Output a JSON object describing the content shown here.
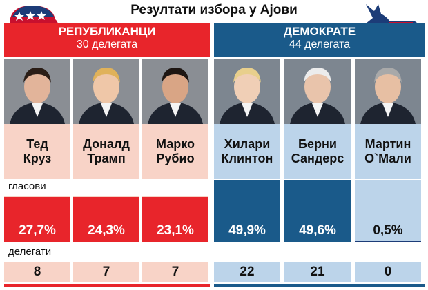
{
  "title": "Резултати избора у Ајови",
  "row_labels": {
    "votes": "гласови",
    "delegates": "делегати"
  },
  "colors": {
    "rep": "#e8252b",
    "rep_light": "#f8d3c7",
    "dem": "#1a5a8a",
    "dem_light": "#bcd4ea",
    "navy": "#1c3c78"
  },
  "parties": [
    {
      "key": "rep",
      "name": "РЕПУБЛИКАНЦИ",
      "delegates": "30 делегата",
      "icon": "elephant-icon"
    },
    {
      "key": "dem",
      "name": "ДЕМОКРАТЕ",
      "delegates": "44 делегата",
      "icon": "donkey-icon"
    }
  ],
  "candidates": [
    {
      "name": "Тед\nКруз",
      "party": "rep",
      "votes_label": "27,7%",
      "delegates": "8"
    },
    {
      "name": "Доналд\nТрамп",
      "party": "rep",
      "votes_label": "24,3%",
      "delegates": "7"
    },
    {
      "name": "Марко\nРубио",
      "party": "rep",
      "votes_label": "23,1%",
      "delegates": "7"
    },
    {
      "name": "Хилари\nКлинтон",
      "party": "dem",
      "votes_label": "49,9%",
      "delegates": "22"
    },
    {
      "name": "Берни\nСандерс",
      "party": "dem",
      "votes_label": "49,6%",
      "delegates": "21"
    },
    {
      "name": "Мартин\nО`Мали",
      "party": "dem",
      "votes_label": "0,5%",
      "delegates": "0"
    }
  ],
  "chart_data": {
    "type": "bar",
    "title": "Резултати избора у Ајови",
    "categories": [
      "Тед Круз",
      "Доналд Трамп",
      "Марко Рубио",
      "Хилари Клинтон",
      "Берни Сандерс",
      "Мартин О`Мали"
    ],
    "series": [
      {
        "name": "гласови",
        "values": [
          27.7,
          24.3,
          23.1,
          49.9,
          49.6,
          0.5
        ]
      },
      {
        "name": "делегати",
        "values": [
          8,
          7,
          7,
          22,
          21,
          0
        ]
      }
    ]
  }
}
